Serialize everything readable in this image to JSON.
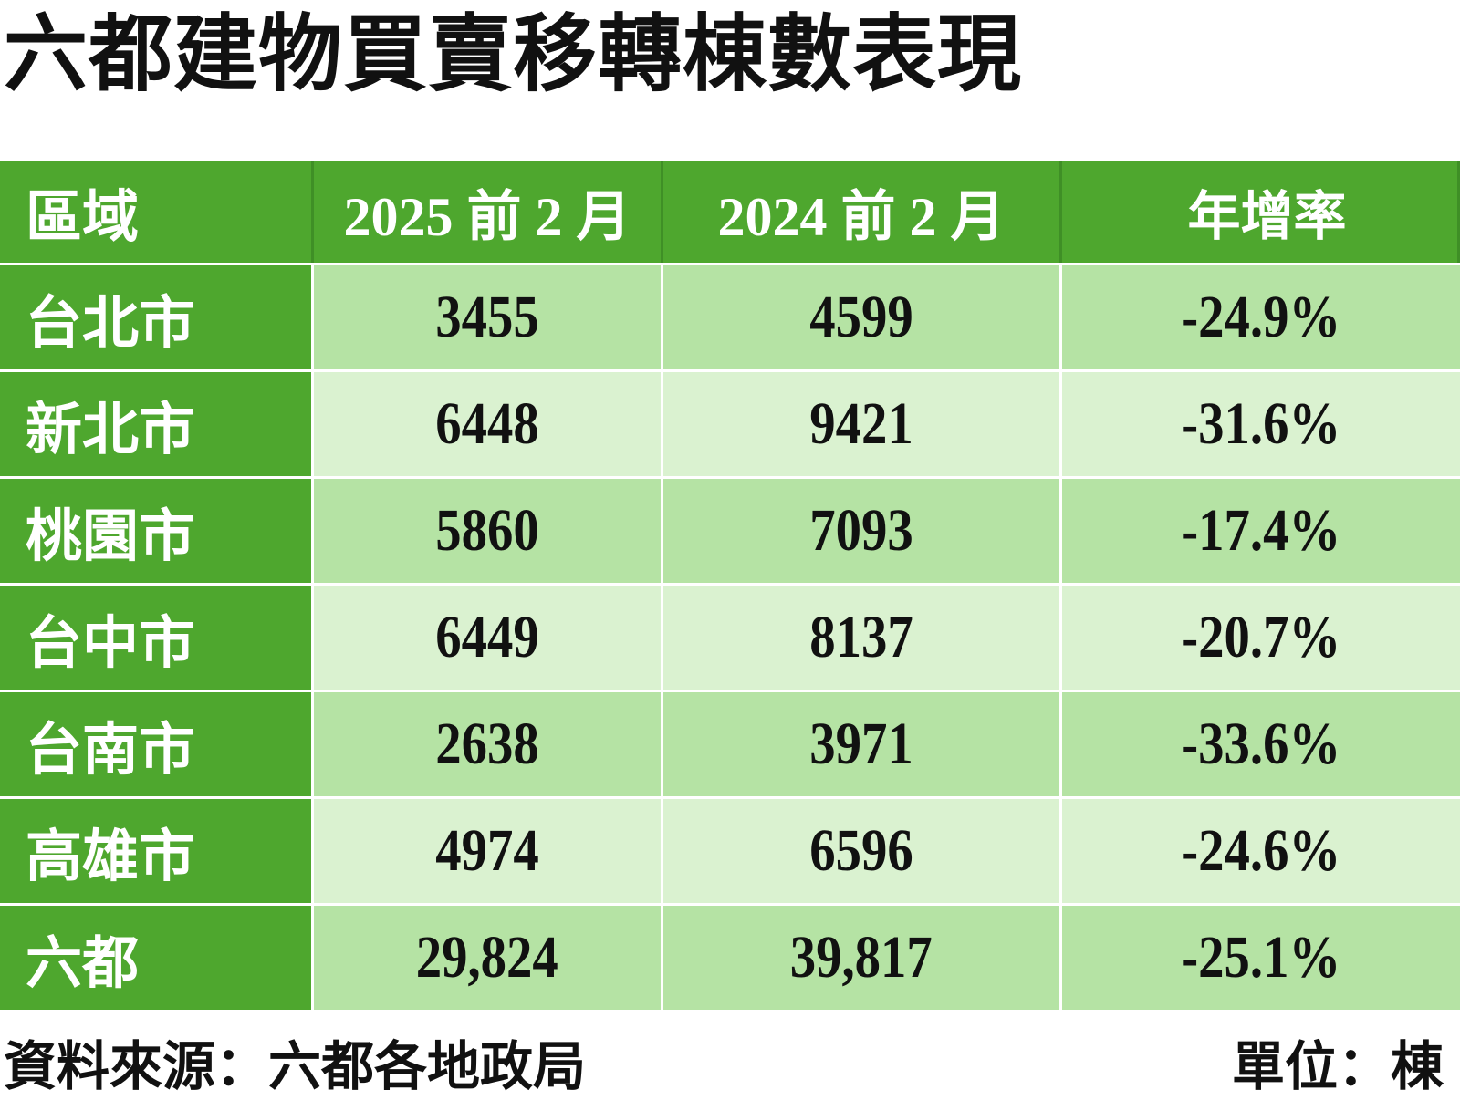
{
  "title": "六都建物買賣移轉棟數表現",
  "colors": {
    "header_green": "#4ea72e",
    "row_light": "#b5e3a4",
    "row_lighter": "#daf2d0"
  },
  "chart_data": {
    "type": "table",
    "title": "六都建物買賣移轉棟數表現",
    "columns": [
      "區域",
      "2025 前 2 月",
      "2024 前 2 月",
      "年增率"
    ],
    "rows": [
      [
        "台北市",
        "3455",
        "4599",
        "-24.9%"
      ],
      [
        "新北市",
        "6448",
        "9421",
        "-31.6%"
      ],
      [
        "桃園市",
        "5860",
        "7093",
        "-17.4%"
      ],
      [
        "台中市",
        "6449",
        "8137",
        "-20.7%"
      ],
      [
        "台南市",
        "2638",
        "3971",
        "-33.6%"
      ],
      [
        "高雄市",
        "4974",
        "6596",
        "-24.6%"
      ],
      [
        "六都",
        "29,824",
        "39,817",
        "-25.1%"
      ]
    ]
  },
  "footer": {
    "source": "資料來源：六都各地政局",
    "unit": "單位：棟"
  }
}
